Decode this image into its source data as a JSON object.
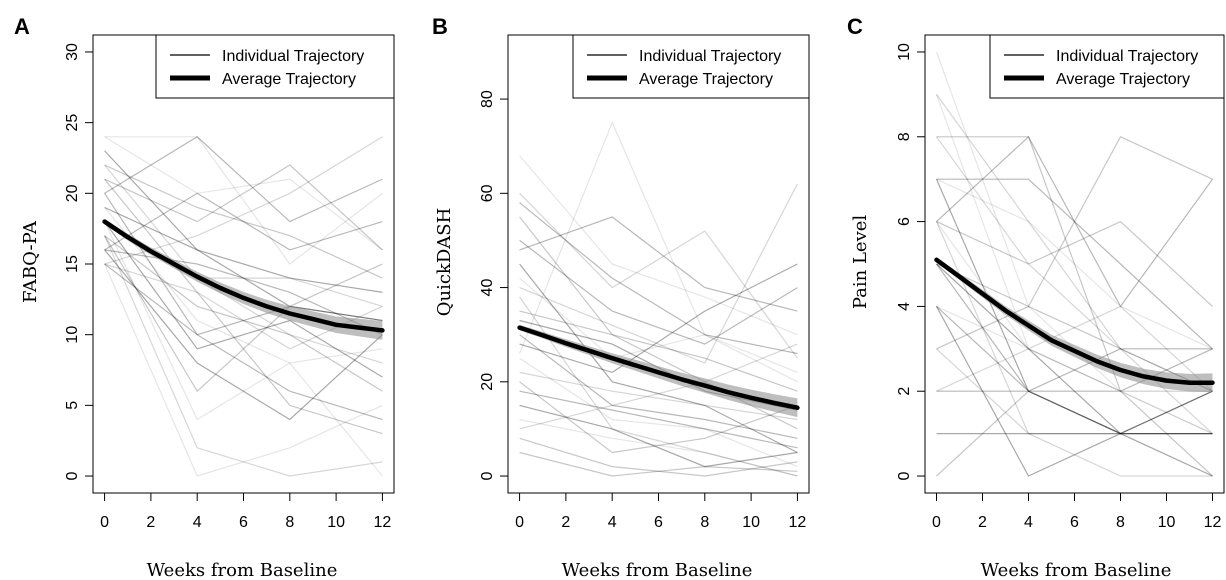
{
  "figure": {
    "panels": [
      {
        "letter": "A",
        "chart_data": {
          "type": "line",
          "title": "",
          "xlabel": "Weeks from Baseline",
          "ylabel": "FABQ-PA",
          "xlim": [
            -0.5,
            12.5
          ],
          "ylim": [
            -1.2,
            31.2
          ],
          "x_ticks": [
            0,
            2,
            4,
            6,
            8,
            10,
            12
          ],
          "y_ticks": [
            0,
            5,
            10,
            15,
            20,
            25,
            30
          ],
          "legend": {
            "position": "top-right",
            "entries": [
              "Individual Trajectory",
              "Average Trajectory"
            ]
          },
          "measurement_weeks": [
            0,
            4,
            8,
            12
          ],
          "series": [
            {
              "name": "Average Trajectory",
              "x": [
                0,
                1,
                2,
                3,
                4,
                5,
                6,
                7,
                8,
                9,
                10,
                11,
                12
              ],
              "y": [
                18.0,
                16.9,
                15.9,
                15.0,
                14.1,
                13.3,
                12.6,
                12.0,
                11.5,
                11.1,
                10.7,
                10.5,
                10.3
              ]
            }
          ],
          "individual_trajectories": [
            [
              24,
              24,
              15,
              20
            ],
            [
              22,
              14,
              10,
              8
            ],
            [
              21,
              18,
              22,
              16
            ],
            [
              20,
              10,
              6,
              4
            ],
            [
              19,
              16,
              12,
              11
            ],
            [
              18,
              4,
              8,
              0
            ],
            [
              18,
              14,
              14,
              12
            ],
            [
              17,
              12,
              10,
              6
            ],
            [
              16,
              20,
              16,
              18
            ],
            [
              16,
              8,
              4,
              10
            ],
            [
              15,
              0,
              2,
              5
            ],
            [
              15,
              13,
              9,
              12
            ],
            [
              17,
              6,
              12,
              15
            ],
            [
              20,
              24,
              18,
              21
            ],
            [
              23,
              16,
              14,
              13
            ],
            [
              19,
              11,
              8,
              9
            ],
            [
              15,
              17,
              20,
              24
            ],
            [
              21,
              13,
              5,
              3
            ],
            [
              16,
              15,
              13,
              10
            ],
            [
              18,
              9,
              11,
              7
            ],
            [
              24,
              20,
              21,
              16
            ],
            [
              17,
              2,
              0,
              1
            ],
            [
              22,
              19,
              17,
              14
            ],
            [
              15,
              10,
              12,
              11
            ]
          ]
        }
      },
      {
        "letter": "B",
        "chart_data": {
          "type": "line",
          "title": "",
          "xlabel": "Weeks from Baseline",
          "ylabel": "QuickDASH",
          "xlim": [
            -0.5,
            12.5
          ],
          "ylim": [
            -3.6,
            93.6
          ],
          "x_ticks": [
            0,
            2,
            4,
            6,
            8,
            10,
            12
          ],
          "y_ticks": [
            0,
            20,
            40,
            60,
            80
          ],
          "legend": {
            "position": "top-right",
            "entries": [
              "Individual Trajectory",
              "Average Trajectory"
            ]
          },
          "measurement_weeks": [
            0,
            4,
            8,
            12
          ],
          "series": [
            {
              "name": "Average Trajectory",
              "x": [
                0,
                1,
                2,
                3,
                4,
                5,
                6,
                7,
                8,
                9,
                10,
                11,
                12
              ],
              "y": [
                31.5,
                29.9,
                28.2,
                26.6,
                25.0,
                23.5,
                22.0,
                20.5,
                19.2,
                17.8,
                16.6,
                15.5,
                14.5
              ]
            }
          ],
          "individual_trajectories": [
            [
              68,
              45,
              38,
              30
            ],
            [
              60,
              40,
              52,
              25
            ],
            [
              55,
              30,
              20,
              10
            ],
            [
              50,
              35,
              28,
              40
            ],
            [
              45,
              20,
              15,
              5
            ],
            [
              42,
              25,
              30,
              22
            ],
            [
              38,
              10,
              5,
              0
            ],
            [
              35,
              30,
              25,
              18
            ],
            [
              30,
              15,
              12,
              8
            ],
            [
              28,
              22,
              35,
              45
            ],
            [
              25,
              12,
              10,
              2
            ],
            [
              22,
              18,
              15,
              12
            ],
            [
              20,
              5,
              8,
              15
            ],
            [
              18,
              14,
              10,
              6
            ],
            [
              15,
              10,
              2,
              5
            ],
            [
              12,
              8,
              5,
              0
            ],
            [
              10,
              15,
              20,
              28
            ],
            [
              8,
              2,
              0,
              3
            ],
            [
              48,
              55,
              40,
              35
            ],
            [
              33,
              28,
              18,
              14
            ],
            [
              26,
              75,
              30,
              20
            ],
            [
              40,
              32,
              24,
              62
            ],
            [
              5,
              0,
              2,
              1
            ],
            [
              58,
              42,
              30,
              26
            ]
          ]
        }
      },
      {
        "letter": "C",
        "chart_data": {
          "type": "line",
          "title": "",
          "xlabel": "Weeks from Baseline",
          "ylabel": "Pain  Level",
          "xlim": [
            -0.5,
            12.5
          ],
          "ylim": [
            -0.4,
            10.4
          ],
          "x_ticks": [
            0,
            2,
            4,
            6,
            8,
            10,
            12
          ],
          "y_ticks": [
            0,
            2,
            4,
            6,
            8,
            10
          ],
          "legend": {
            "position": "top-right",
            "entries": [
              "Individual Trajectory",
              "Average Trajectory"
            ]
          },
          "measurement_weeks": [
            0,
            4,
            8,
            12
          ],
          "series": [
            {
              "name": "Average Trajectory",
              "x": [
                0,
                1,
                2,
                3,
                4,
                5,
                6,
                7,
                8,
                9,
                10,
                11,
                12
              ],
              "y": [
                5.1,
                4.7,
                4.3,
                3.9,
                3.55,
                3.2,
                2.95,
                2.7,
                2.5,
                2.35,
                2.25,
                2.2,
                2.2
              ]
            }
          ],
          "individual_trajectories": [
            [
              10,
              4,
              2,
              2
            ],
            [
              9,
              6,
              3,
              1
            ],
            [
              8,
              8,
              2,
              0
            ],
            [
              7,
              7,
              5,
              3
            ],
            [
              7,
              2,
              1,
              1
            ],
            [
              6,
              3,
              2,
              2
            ],
            [
              6,
              1,
              1,
              0
            ],
            [
              5,
              4,
              8,
              7
            ],
            [
              5,
              2,
              3,
              3
            ],
            [
              4,
              0,
              1,
              2
            ],
            [
              4,
              3,
              2,
              1
            ],
            [
              3,
              1,
              0,
              0
            ],
            [
              3,
              4,
              3,
              2
            ],
            [
              2,
              2,
              1,
              1
            ],
            [
              1,
              1,
              1,
              1
            ],
            [
              7,
              6,
              4,
              3
            ],
            [
              8,
              5,
              3,
              2
            ],
            [
              6,
              5,
              6,
              4
            ],
            [
              4,
              2,
              2,
              3
            ],
            [
              5,
              3,
              1,
              2
            ],
            [
              9,
              3,
              2,
              1
            ],
            [
              2,
              3,
              4,
              2
            ],
            [
              0,
              2,
              1,
              0
            ],
            [
              6,
              8,
              4,
              7
            ]
          ]
        }
      }
    ]
  }
}
